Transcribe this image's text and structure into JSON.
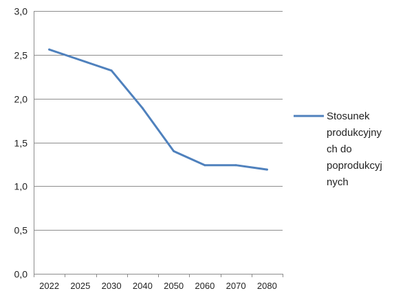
{
  "chart_data": {
    "type": "line",
    "categories": [
      "2022",
      "2025",
      "2030",
      "2040",
      "2050",
      "2060",
      "2070",
      "2080"
    ],
    "series": [
      {
        "name": "Stosunek produkcyjnych do poprodukcyjnych",
        "name_lines": [
          "Stosunek",
          "produkcyjny",
          "ch do",
          "poprodukcyj",
          "nych"
        ],
        "values": [
          2.56,
          2.44,
          2.32,
          1.89,
          1.4,
          1.24,
          1.24,
          1.19
        ],
        "color": "#4F81BD"
      }
    ],
    "y_tick_labels": [
      "0,0",
      "0,5",
      "1,0",
      "1,5",
      "2,0",
      "2,5",
      "3,0"
    ],
    "ylim": [
      0,
      3
    ],
    "y_step": 0.5,
    "grid": true,
    "grid_color": "#8C8C8C",
    "legend_position": "right"
  }
}
